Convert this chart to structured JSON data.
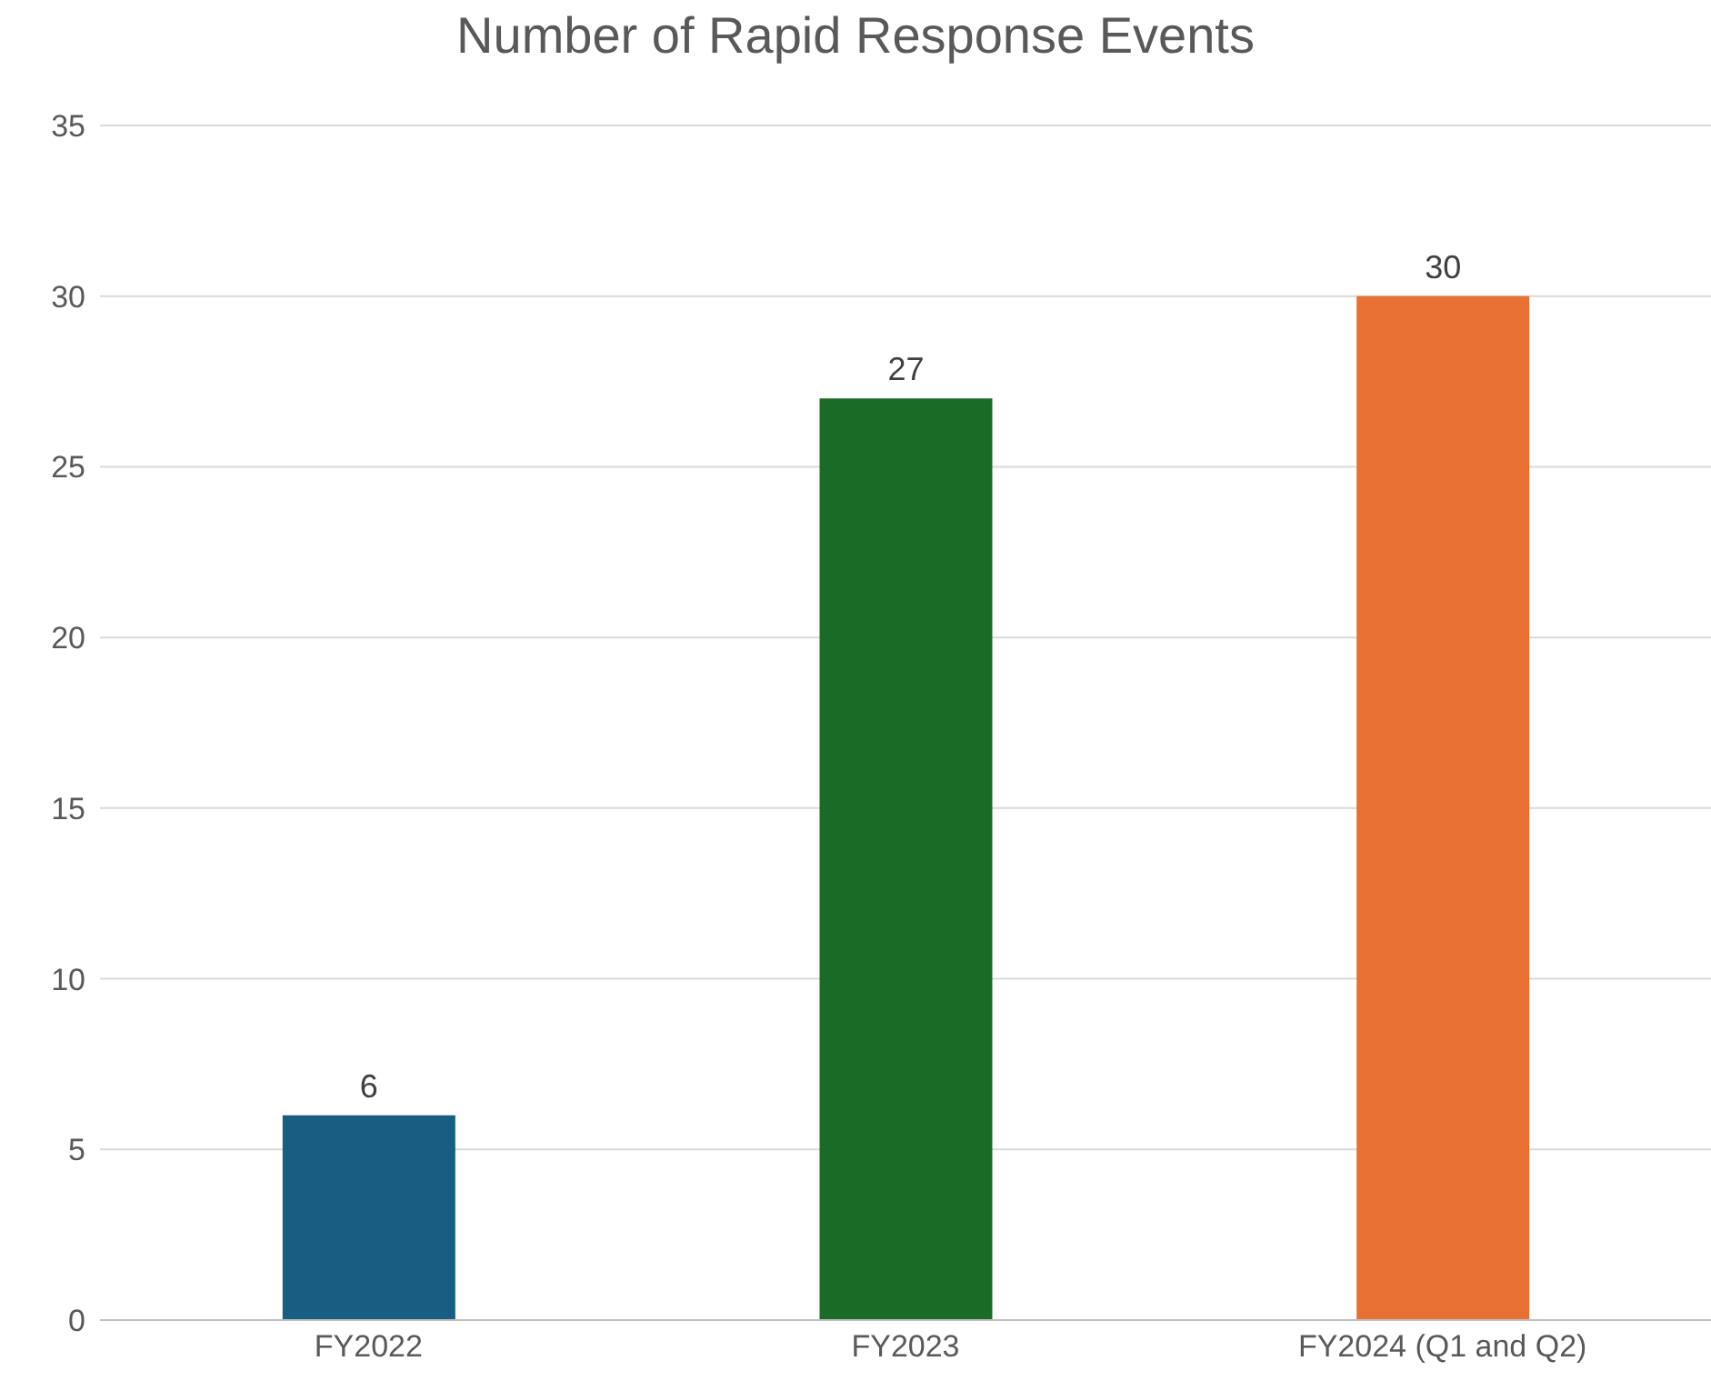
{
  "chart_data": {
    "type": "bar",
    "title": "Number of Rapid Response Events",
    "categories": [
      "FY2022",
      "FY2023",
      "FY2024 (Q1 and Q2)"
    ],
    "values": [
      6,
      27,
      30
    ],
    "colors": [
      "#175e82",
      "#1a6b26",
      "#e87033"
    ],
    "ylim": [
      0,
      35
    ],
    "yticks": [
      0,
      5,
      10,
      15,
      20,
      25,
      30,
      35
    ],
    "grid": "y",
    "data_labels": true
  }
}
